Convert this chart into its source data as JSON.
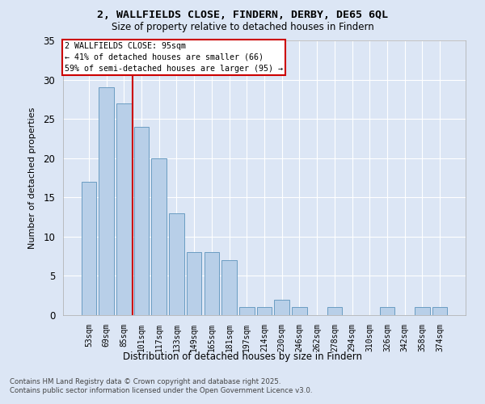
{
  "title1": "2, WALLFIELDS CLOSE, FINDERN, DERBY, DE65 6QL",
  "title2": "Size of property relative to detached houses in Findern",
  "xlabel": "Distribution of detached houses by size in Findern",
  "ylabel": "Number of detached properties",
  "categories": [
    "53sqm",
    "69sqm",
    "85sqm",
    "101sqm",
    "117sqm",
    "133sqm",
    "149sqm",
    "165sqm",
    "181sqm",
    "197sqm",
    "214sqm",
    "230sqm",
    "246sqm",
    "262sqm",
    "278sqm",
    "294sqm",
    "310sqm",
    "326sqm",
    "342sqm",
    "358sqm",
    "374sqm"
  ],
  "values": [
    17,
    29,
    27,
    24,
    20,
    13,
    8,
    8,
    7,
    1,
    1,
    2,
    1,
    0,
    1,
    0,
    0,
    1,
    0,
    1,
    1
  ],
  "bar_color": "#b8cfe8",
  "bar_edge_color": "#6b9dc2",
  "background_color": "#dce6f5",
  "grid_color": "#ffffff",
  "annotation_text_line1": "2 WALLFIELDS CLOSE: 95sqm",
  "annotation_text_line2": "← 41% of detached houses are smaller (66)",
  "annotation_text_line3": "59% of semi-detached houses are larger (95) →",
  "annotation_box_facecolor": "#ffffff",
  "annotation_box_edgecolor": "#cc0000",
  "red_line_color": "#cc0000",
  "red_line_x": 2.5,
  "ylim": [
    0,
    35
  ],
  "yticks": [
    0,
    5,
    10,
    15,
    20,
    25,
    30,
    35
  ],
  "footer_line1": "Contains HM Land Registry data © Crown copyright and database right 2025.",
  "footer_line2": "Contains public sector information licensed under the Open Government Licence v3.0."
}
